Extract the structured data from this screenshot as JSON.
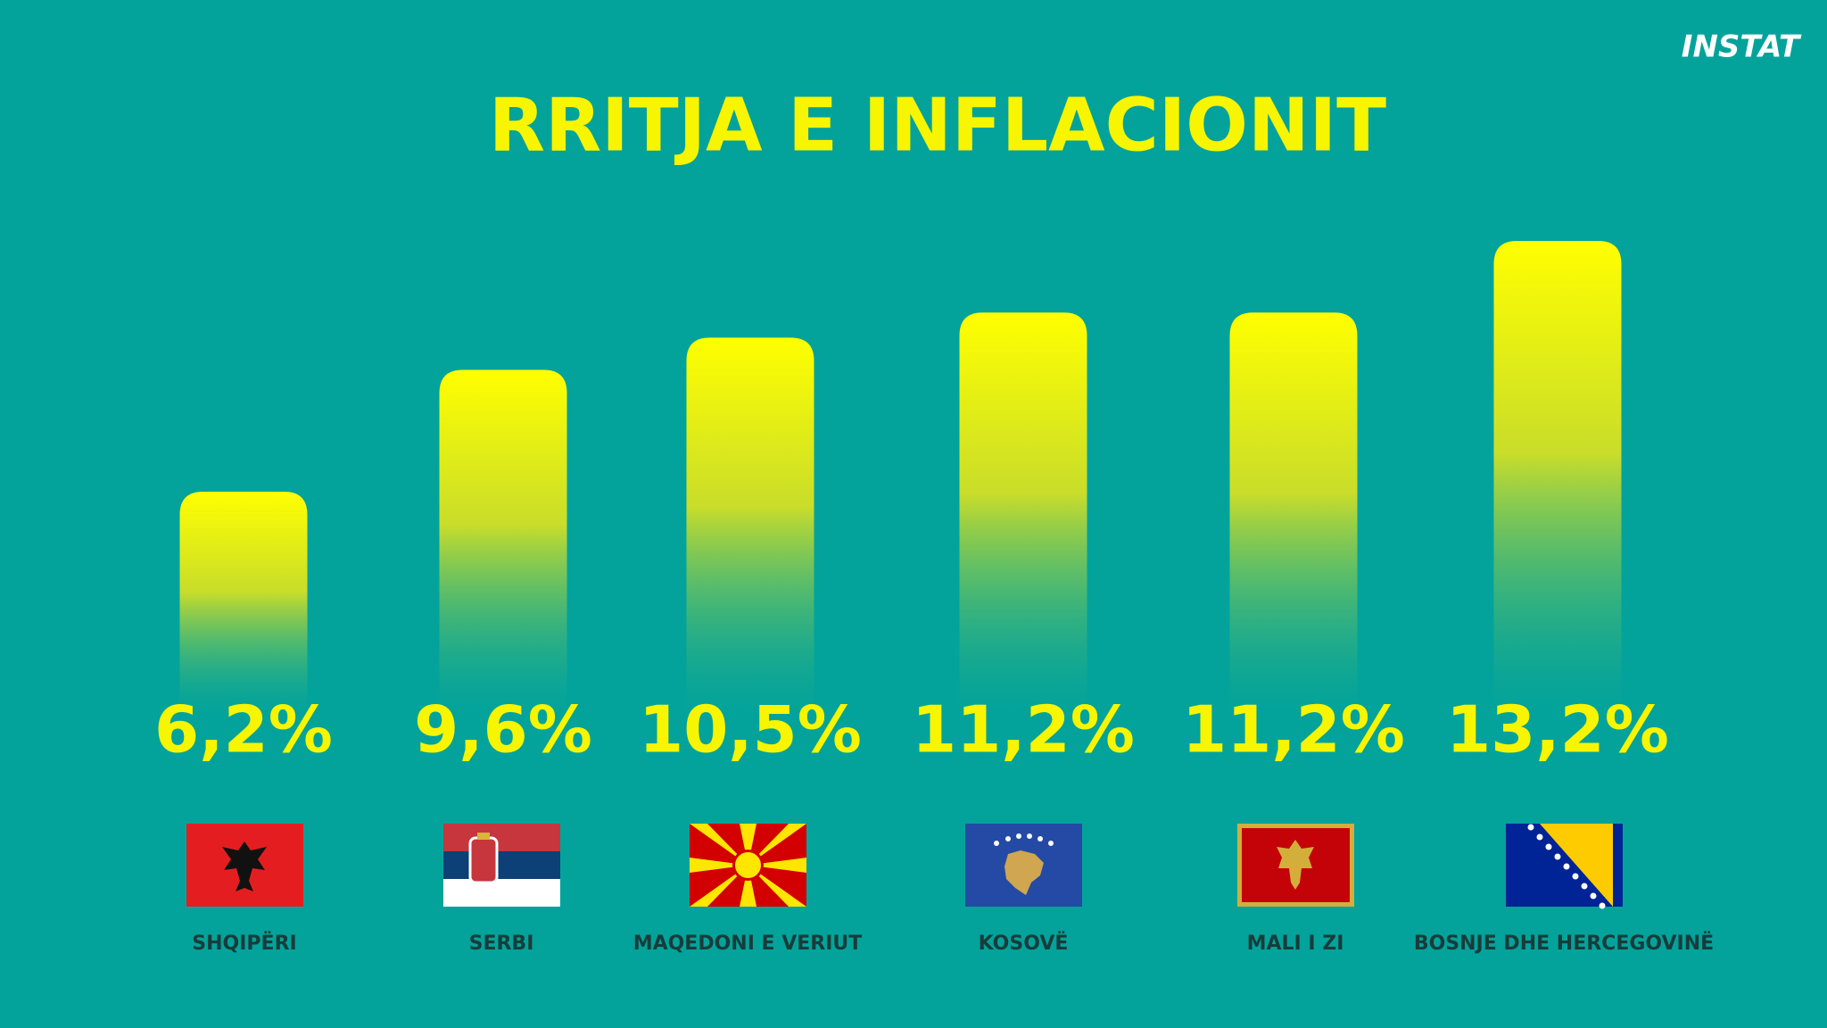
{
  "chart_data": {
    "type": "bar",
    "title": "RRITJA E INFLACIONIT",
    "logo": "INSTAT",
    "categories": [
      "SHQIPËRI",
      "SERBI",
      "MAQEDONI E VERIUT",
      "KOSOVË",
      "MALI I ZI",
      "BOSNJE DHE HERCEGOVINË"
    ],
    "values": [
      6.2,
      9.6,
      10.5,
      11.2,
      11.2,
      13.2
    ],
    "value_labels": [
      "6,2%",
      "9,6%",
      "10,5%",
      "11,2%",
      "11,2%",
      "13,2%"
    ],
    "color": "#f7f500"
  }
}
